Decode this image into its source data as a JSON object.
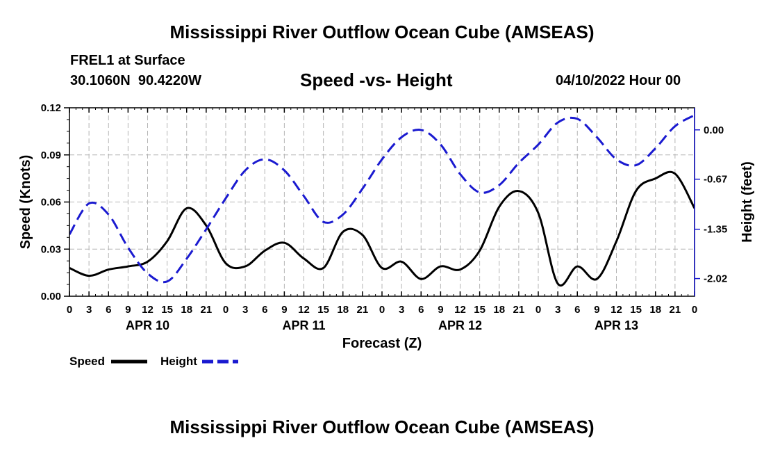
{
  "page": {
    "main_title": "Mississippi River Outflow Ocean Cube (AMSEAS)",
    "bottom_title": "Mississippi River Outflow Ocean Cube (AMSEAS)",
    "station": "FREL1 at Surface",
    "coords": "30.1060N  90.4220W",
    "subtitle": "Speed -vs- Height",
    "datetime": "04/10/2022 Hour 00"
  },
  "colors": {
    "speed": "#000000",
    "height": "#1a1ad0",
    "grid": "#b4b4b4"
  },
  "chart_data": {
    "type": "line",
    "title": "Speed -vs- Height",
    "xlabel": "Forecast (Z)",
    "ylabel_left": "Speed (Knots)",
    "ylabel_right": "Height (feet)",
    "x_range_hours": [
      0,
      96
    ],
    "x_tick_step_hours": 3,
    "x_tick_labels": [
      "0",
      "3",
      "6",
      "9",
      "12",
      "15",
      "18",
      "21",
      "0",
      "3",
      "6",
      "9",
      "12",
      "15",
      "18",
      "21",
      "0",
      "3",
      "6",
      "9",
      "12",
      "15",
      "18",
      "21",
      "0",
      "3",
      "6",
      "9",
      "12",
      "15",
      "18",
      "21",
      "0"
    ],
    "day_labels": [
      {
        "hour": 12,
        "label": "APR 10"
      },
      {
        "hour": 36,
        "label": "APR 11"
      },
      {
        "hour": 60,
        "label": "APR 12"
      },
      {
        "hour": 84,
        "label": "APR 13"
      }
    ],
    "y_left": {
      "range": [
        0,
        0.12
      ],
      "ticks": [
        0.0,
        0.03,
        0.06,
        0.09,
        0.12
      ],
      "tick_labels": [
        "0.00",
        "0.03",
        "0.06",
        "0.09",
        "0.12"
      ]
    },
    "y_right": {
      "range": [
        -2.26,
        0.3
      ],
      "ticks": [
        0.0,
        -0.67,
        -1.35,
        -2.02
      ],
      "tick_labels": [
        "0.00",
        "-0.67",
        "-1.35",
        "-2.02"
      ]
    },
    "grid": true,
    "series": [
      {
        "name": "Speed",
        "axis": "left",
        "style": "solid",
        "x": [
          0,
          3,
          6,
          9,
          12,
          15,
          18,
          21,
          24,
          27,
          30,
          33,
          36,
          39,
          42,
          45,
          48,
          51,
          54,
          57,
          60,
          63,
          66,
          69,
          72,
          75,
          78,
          81,
          84,
          87,
          90,
          93,
          96
        ],
        "values": [
          0.018,
          0.013,
          0.017,
          0.019,
          0.022,
          0.035,
          0.056,
          0.045,
          0.021,
          0.019,
          0.029,
          0.034,
          0.024,
          0.018,
          0.041,
          0.039,
          0.018,
          0.022,
          0.011,
          0.019,
          0.017,
          0.029,
          0.057,
          0.067,
          0.053,
          0.008,
          0.019,
          0.011,
          0.035,
          0.067,
          0.075,
          0.078,
          0.056
        ]
      },
      {
        "name": "Height",
        "axis": "right",
        "style": "dashed",
        "x": [
          0,
          3,
          6,
          9,
          12,
          15,
          18,
          21,
          24,
          27,
          30,
          33,
          36,
          39,
          42,
          45,
          48,
          51,
          54,
          57,
          60,
          63,
          66,
          69,
          72,
          75,
          78,
          81,
          84,
          87,
          90,
          93,
          96
        ],
        "values": [
          -1.42,
          -1.0,
          -1.15,
          -1.6,
          -1.95,
          -2.06,
          -1.75,
          -1.35,
          -0.93,
          -0.55,
          -0.4,
          -0.55,
          -0.9,
          -1.25,
          -1.15,
          -0.8,
          -0.4,
          -0.1,
          0.0,
          -0.2,
          -0.6,
          -0.85,
          -0.75,
          -0.45,
          -0.2,
          0.1,
          0.15,
          -0.1,
          -0.4,
          -0.48,
          -0.25,
          0.05,
          0.2
        ]
      }
    ],
    "legend": {
      "position": "bottom-left",
      "entries": [
        "Speed",
        "Height"
      ]
    }
  }
}
